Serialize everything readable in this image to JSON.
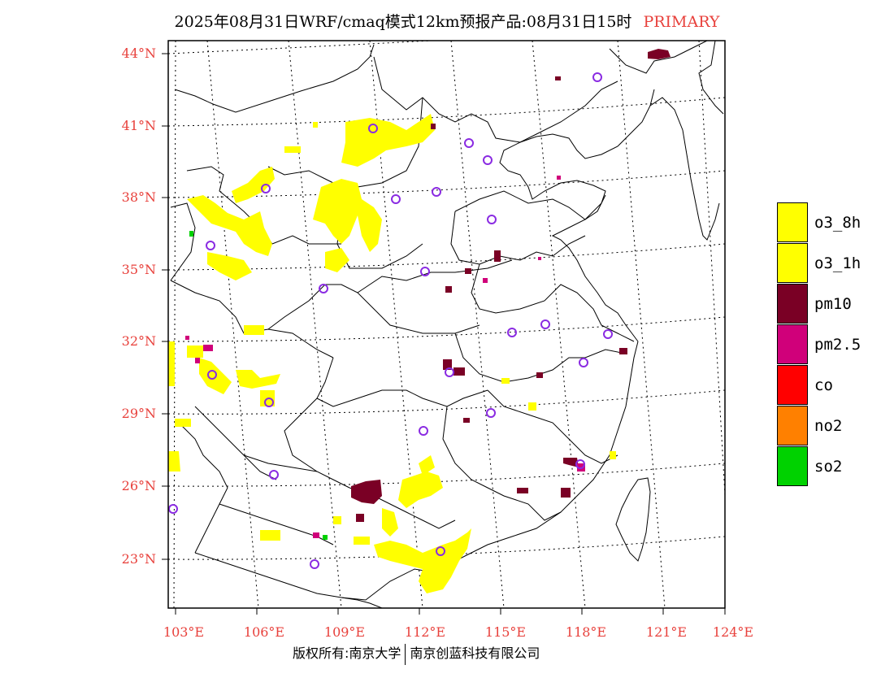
{
  "title": {
    "text": "2025年08月31日WRF/cmaq模式12km预报产品:08月31日15时",
    "tag": "PRIMARY",
    "tag_color": "#e8413c"
  },
  "axes": {
    "lat_labels": [
      "44°N",
      "41°N",
      "38°N",
      "35°N",
      "32°N",
      "29°N",
      "26°N",
      "23°N"
    ],
    "lon_labels": [
      "103°E",
      "106°E",
      "109°E",
      "112°E",
      "115°E",
      "118°E",
      "121°E",
      "124°E"
    ],
    "label_color": "#e8413c"
  },
  "legend": [
    {
      "label": "o3_8h",
      "color": "#ffff00"
    },
    {
      "label": "o3_1h",
      "color": "#ffff00"
    },
    {
      "label": "pm10",
      "color": "#7a0025"
    },
    {
      "label": "pm2.5",
      "color": "#d0007a"
    },
    {
      "label": "co",
      "color": "#ff0000"
    },
    {
      "label": "no2",
      "color": "#ff8000"
    },
    {
      "label": "so2",
      "color": "#00d200"
    }
  ],
  "station_color": "#8a2be2",
  "footer": {
    "left": "版权所有:南京大学",
    "right": "南京创蓝科技有限公司"
  }
}
